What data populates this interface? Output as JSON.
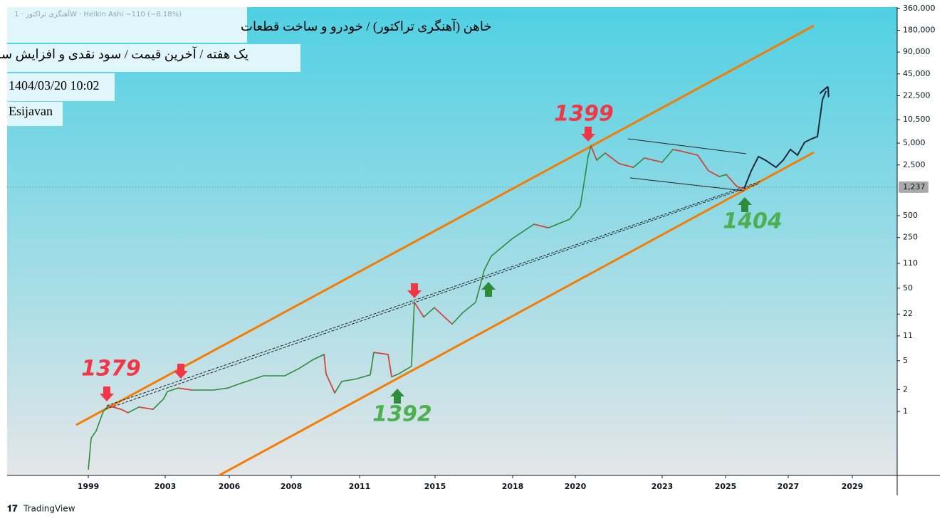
{
  "chart_data": {
    "type": "line",
    "log_y": true,
    "symbol_line": "آهنگری تراکتور · 1W · Heikin Ashi  −110 (−8.18%)",
    "header": [
      "خاهن (آهنگری تراکتور) / خودرو و ساخت قطعات",
      "یک هفته / آخرین قیمت / سود نقدی و افزایش سرمایه",
      "1404/03/20 10:02",
      "Esijavan"
    ],
    "xlim": [
      1994.8,
      2030.4
    ],
    "xticks": [
      1999,
      2003,
      2006,
      2008,
      2011,
      2015,
      2018,
      2020,
      2023,
      2025,
      2027,
      2029
    ],
    "ylim": [
      0.131,
      375000
    ],
    "yticks": [
      1,
      2,
      5,
      11,
      22,
      50,
      110,
      250,
      500,
      {
        "value": 2500,
        "label": "2,500"
      },
      {
        "value": 5000,
        "label": "5,000"
      },
      {
        "value": 10500,
        "label": "10,500"
      },
      {
        "value": 22500,
        "label": "22,500"
      },
      {
        "value": 45000,
        "label": "45,000"
      },
      {
        "value": 90000,
        "label": "90,000"
      },
      {
        "value": 180000,
        "label": "180,000"
      },
      {
        "value": 360000,
        "label": "360,000"
      }
    ],
    "last_price": {
      "value": 1237,
      "label": "1,237"
    },
    "series": [
      {
        "color": "#2e8b3a",
        "x": [
          1999.0,
          1999.15,
          1999.41,
          1999.78,
          2000.04,
          2000.7,
          2001.07,
          2001.63,
          2002.37,
          2002.93,
          2003.1,
          2003.6,
          2004.27,
          2005.27,
          2005.93,
          2006.41,
          2007.1,
          2007.79,
          2008.34,
          2008.97,
          2009.44,
          2009.53,
          2009.91,
          2010.22,
          2010.84,
          2011.57,
          2011.75,
          2012.51,
          2012.7,
          2013.08,
          2013.75,
          2013.9,
          2014.4,
          2014.96,
          2015.66,
          2016.07,
          2016.57,
          2016.9,
          2017.17,
          2018.0,
          2018.68,
          2019.14,
          2019.82,
          2020.17,
          2020.29,
          2020.44,
          2020.54,
          2020.74,
          2021.03,
          2021.52,
          2022.01,
          2022.38,
          2023.0,
          2023.34,
          2023.56,
          2024.12,
          2024.46,
          2024.8,
          2025.02,
          2025.36,
          2025.59
        ],
        "values": [
          0.157,
          0.43,
          0.54,
          1,
          1.2,
          1.07,
          0.96,
          1.15,
          1.07,
          1.5,
          1.88,
          2.1,
          1.97,
          1.97,
          2.1,
          2.47,
          3.1,
          3.1,
          3.9,
          5.2,
          6.1,
          3.3,
          1.8,
          2.6,
          2.8,
          3.2,
          6.5,
          6.1,
          3.0,
          3.3,
          4.2,
          32,
          20,
          27,
          16,
          23,
          32,
          88,
          138,
          243,
          381,
          340,
          447,
          670,
          1320,
          3260,
          4570,
          2910,
          3650,
          2600,
          2320,
          3120,
          2720,
          4090,
          3910,
          3410,
          2080,
          1730,
          1850,
          1260,
          1180
        ]
      },
      {
        "color": "#1c2b3a",
        "x": [
          2025.59,
          2025.82,
          2026.05,
          2026.27,
          2026.61,
          2026.84,
          2027.07,
          2027.29,
          2027.51,
          2027.73,
          2027.91,
          2028.07,
          2028.18
        ],
        "values": [
          1180,
          2080,
          3260,
          2910,
          2320,
          2910,
          4090,
          3410,
          5120,
          5740,
          6140,
          19900,
          26100
        ]
      }
    ],
    "lines": [
      {
        "color": "#f57c00",
        "x": [
          1998.37,
          2027.8
        ],
        "values": [
          0.65,
          208000
        ]
      },
      {
        "color": "#f57c00",
        "x": [
          2005.5,
          2027.8
        ],
        "values": [
          0.13,
          3730
        ]
      },
      {
        "color": "#222222",
        "dash": true,
        "x": [
          1999.89,
          2026.05
        ],
        "values": [
          1.07,
          1380
        ]
      },
      {
        "color": "#222222",
        "dash": true,
        "x": [
          1999.96,
          2026.11
        ],
        "values": [
          1.2,
          1480
        ]
      },
      {
        "color": "#222222",
        "x": [
          2021.82,
          2025.66
        ],
        "values": [
          5740,
          3570
        ]
      },
      {
        "color": "#222222",
        "x": [
          2021.89,
          2025.59
        ],
        "values": [
          1660,
          1100
        ]
      }
    ],
    "annotations": [
      {
        "text": "1379",
        "color": "#f23645"
      },
      {
        "text": "1399",
        "color": "#f23645"
      },
      {
        "text": "1392",
        "color": "#4caf50"
      },
      {
        "text": "1404",
        "color": "#4caf50"
      }
    ],
    "watermark": "TradingView"
  }
}
